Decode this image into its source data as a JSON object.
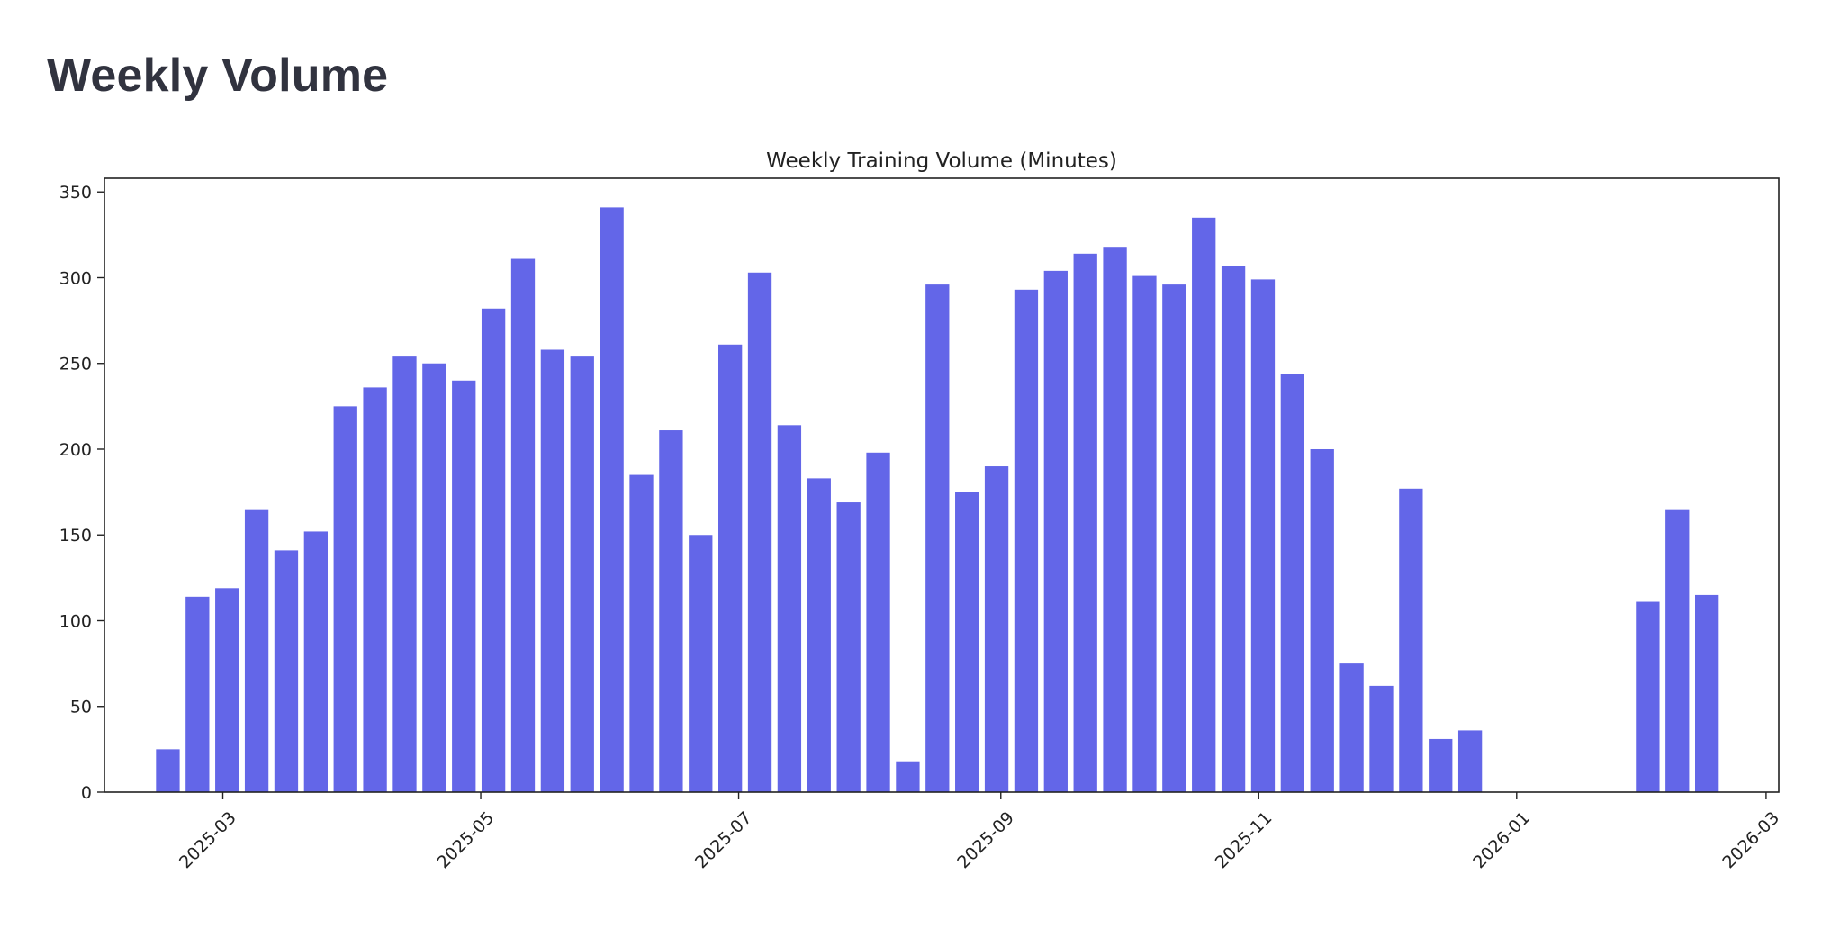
{
  "page": {
    "title": "Weekly Volume"
  },
  "chart_data": {
    "type": "bar",
    "title": "Weekly Training Volume (Minutes)",
    "xlabel": "",
    "ylabel": "",
    "x_axis_type": "date",
    "x_ticks": [
      "2025-03",
      "2025-05",
      "2025-07",
      "2025-09",
      "2025-11",
      "2026-01",
      "2026-03"
    ],
    "x_range": [
      "2025-02-01",
      "2026-03-04"
    ],
    "ylim": [
      0,
      358
    ],
    "y_ticks": [
      0,
      50,
      100,
      150,
      200,
      250,
      300,
      350
    ],
    "grid": false,
    "legend": "none",
    "bar_color": "#6366e8",
    "x": [
      "2025-02-16",
      "2025-02-23",
      "2025-03-02",
      "2025-03-09",
      "2025-03-16",
      "2025-03-23",
      "2025-03-30",
      "2025-04-06",
      "2025-04-13",
      "2025-04-20",
      "2025-04-27",
      "2025-05-04",
      "2025-05-11",
      "2025-05-18",
      "2025-05-25",
      "2025-06-01",
      "2025-06-08",
      "2025-06-15",
      "2025-06-22",
      "2025-06-29",
      "2025-07-06",
      "2025-07-13",
      "2025-07-20",
      "2025-07-27",
      "2025-08-03",
      "2025-08-10",
      "2025-08-17",
      "2025-08-24",
      "2025-08-31",
      "2025-09-07",
      "2025-09-14",
      "2025-09-21",
      "2025-09-28",
      "2025-10-05",
      "2025-10-12",
      "2025-10-19",
      "2025-10-26",
      "2025-11-02",
      "2025-11-09",
      "2025-11-16",
      "2025-11-23",
      "2025-11-30",
      "2025-12-07",
      "2025-12-14",
      "2025-12-21",
      "2026-02-01",
      "2026-02-08",
      "2026-02-15"
    ],
    "values": [
      25,
      114,
      119,
      165,
      141,
      152,
      225,
      236,
      254,
      250,
      240,
      282,
      311,
      258,
      254,
      341,
      185,
      211,
      150,
      261,
      303,
      214,
      183,
      169,
      198,
      18,
      296,
      175,
      190,
      293,
      304,
      314,
      318,
      301,
      296,
      335,
      307,
      299,
      244,
      200,
      75,
      62,
      177,
      31,
      36,
      111,
      165,
      115
    ]
  }
}
